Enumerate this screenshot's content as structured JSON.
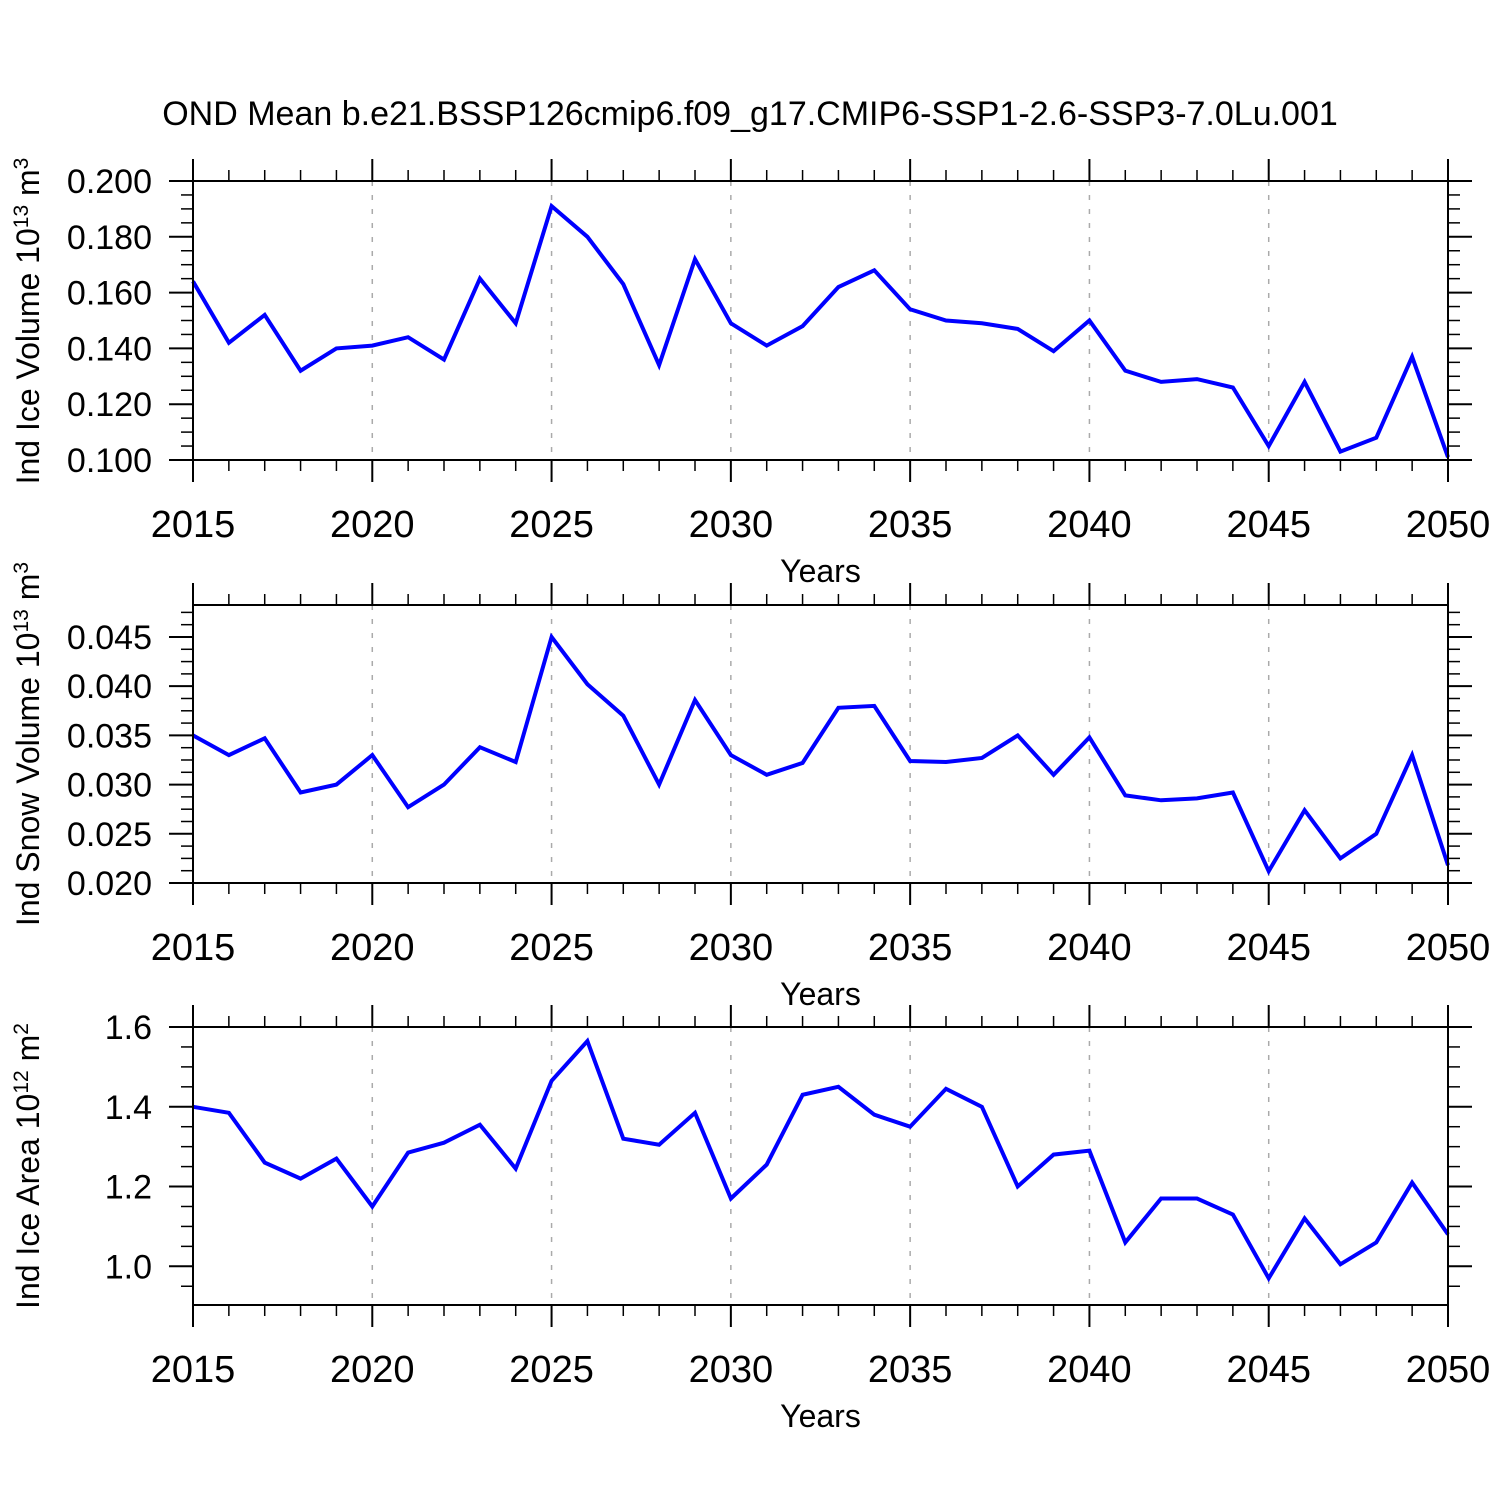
{
  "title": "OND Mean b.e21.BSSP126cmip6.f09_g17.CMIP6-SSP1-2.6-SSP3-7.0Lu.001",
  "colors": {
    "line": "#0000ff",
    "grid": "#aaaaaa",
    "axis": "#000000",
    "background": "#ffffff"
  },
  "x_axis": {
    "label": "Years",
    "min": 2015,
    "max": 2050,
    "major_ticks": [
      2015,
      2020,
      2025,
      2030,
      2035,
      2040,
      2045,
      2050
    ],
    "tick_labels": [
      "2015",
      "2020",
      "2025",
      "2030",
      "2035",
      "2040",
      "2045",
      "2050"
    ],
    "minor_step": 1,
    "gridline_years": [
      2020,
      2025,
      2030,
      2035,
      2040,
      2045
    ]
  },
  "x_years": [
    2015,
    2016,
    2017,
    2018,
    2019,
    2020,
    2021,
    2022,
    2023,
    2024,
    2025,
    2026,
    2027,
    2028,
    2029,
    2030,
    2031,
    2032,
    2033,
    2034,
    2035,
    2036,
    2037,
    2038,
    2039,
    2040,
    2041,
    2042,
    2043,
    2044,
    2045,
    2046,
    2047,
    2048,
    2049,
    2050
  ],
  "chart_data": [
    {
      "type": "line",
      "name": "ind-ice-volume",
      "ylabel_parts": [
        {
          "t": "Ind Ice Volume 10",
          "sup": false
        },
        {
          "t": "13",
          "sup": true
        },
        {
          "t": " m",
          "sup": false
        },
        {
          "t": "3",
          "sup": true
        }
      ],
      "ylim": [
        0.1,
        0.2
      ],
      "yticks": {
        "values": [
          0.1,
          0.12,
          0.14,
          0.16,
          0.18,
          0.2
        ],
        "labels": [
          "0.100",
          "0.120",
          "0.140",
          "0.160",
          "0.180",
          "0.200"
        ]
      },
      "y_minor_step": 0.005,
      "values": [
        0.164,
        0.142,
        0.152,
        0.132,
        0.14,
        0.141,
        0.144,
        0.136,
        0.165,
        0.149,
        0.191,
        0.18,
        0.163,
        0.134,
        0.172,
        0.149,
        0.141,
        0.148,
        0.162,
        0.168,
        0.154,
        0.15,
        0.149,
        0.147,
        0.139,
        0.15,
        0.132,
        0.128,
        0.129,
        0.126,
        0.105,
        0.128,
        0.103,
        0.108,
        0.137,
        0.101
      ]
    },
    {
      "type": "line",
      "name": "ind-snow-volume",
      "ylabel_parts": [
        {
          "t": "Ind Snow Volume 10",
          "sup": false
        },
        {
          "t": "13",
          "sup": true
        },
        {
          "t": " m",
          "sup": false
        },
        {
          "t": "3",
          "sup": true
        }
      ],
      "ylim": [
        0.02,
        0.04825
      ],
      "yticks": {
        "values": [
          0.02,
          0.025,
          0.03,
          0.035,
          0.04,
          0.045
        ],
        "labels": [
          "0.020",
          "0.025",
          "0.030",
          "0.035",
          "0.040",
          "0.045"
        ]
      },
      "y_minor_step": 0.00125,
      "values": [
        0.035,
        0.033,
        0.0347,
        0.0292,
        0.03,
        0.033,
        0.0277,
        0.03,
        0.0338,
        0.0323,
        0.045,
        0.0402,
        0.037,
        0.03,
        0.0386,
        0.033,
        0.031,
        0.0322,
        0.0378,
        0.038,
        0.0324,
        0.0323,
        0.0327,
        0.035,
        0.031,
        0.0348,
        0.0289,
        0.0284,
        0.0286,
        0.0292,
        0.0212,
        0.0274,
        0.0225,
        0.025,
        0.033,
        0.0218
      ]
    },
    {
      "type": "line",
      "name": "ind-ice-area",
      "ylabel_parts": [
        {
          "t": "Ind Ice Area 10",
          "sup": false
        },
        {
          "t": "12",
          "sup": true
        },
        {
          "t": " m",
          "sup": false
        },
        {
          "t": "2",
          "sup": true
        }
      ],
      "ylim": [
        0.903,
        1.6
      ],
      "yticks": {
        "values": [
          1.0,
          1.2,
          1.4,
          1.6
        ],
        "labels": [
          "1.0",
          "1.2",
          "1.4",
          "1.6"
        ]
      },
      "y_minor_step": 0.05,
      "values": [
        1.4,
        1.385,
        1.26,
        1.22,
        1.27,
        1.15,
        1.285,
        1.31,
        1.355,
        1.245,
        1.465,
        1.565,
        1.32,
        1.305,
        1.385,
        1.17,
        1.255,
        1.43,
        1.45,
        1.38,
        1.35,
        1.445,
        1.4,
        1.2,
        1.28,
        1.29,
        1.06,
        1.17,
        1.17,
        1.13,
        0.97,
        1.12,
        1.005,
        1.06,
        1.21,
        1.08
      ]
    }
  ]
}
